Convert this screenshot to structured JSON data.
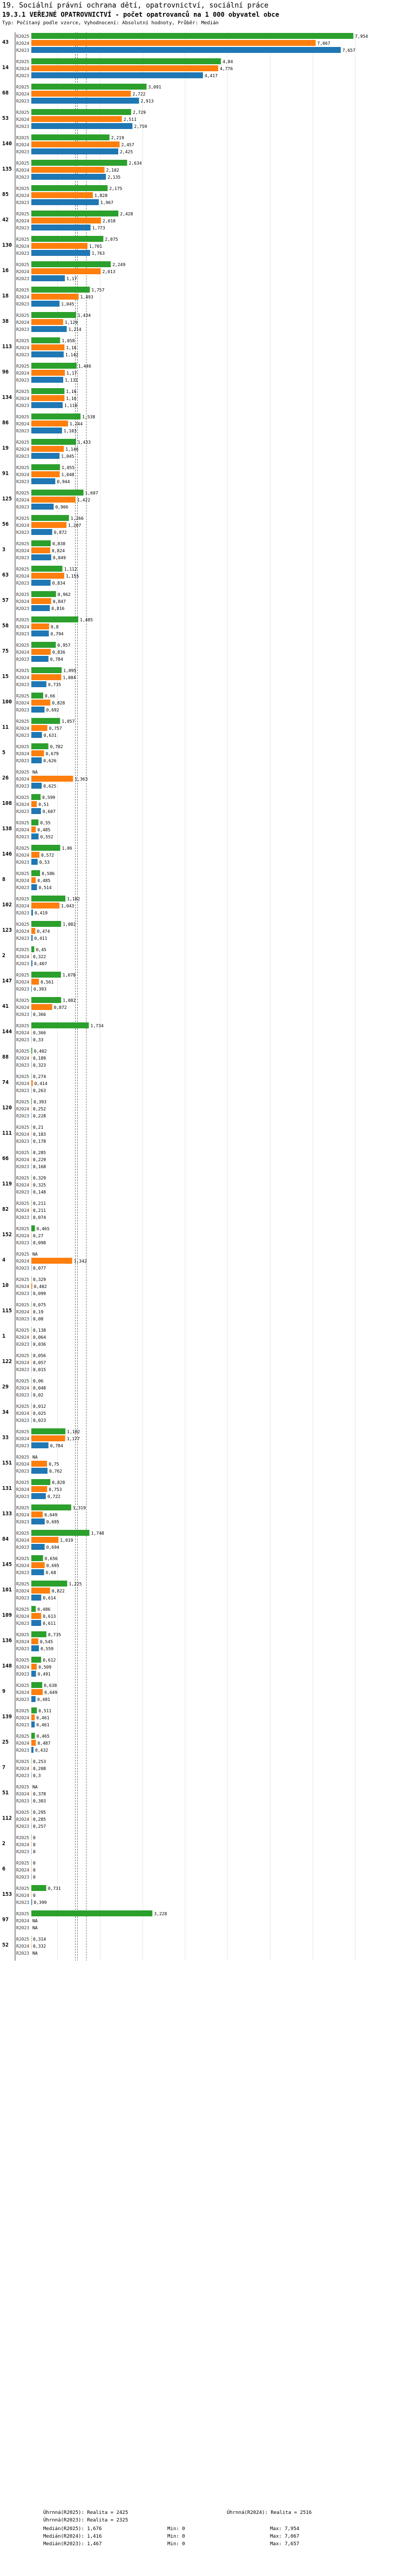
{
  "header": {
    "line1": "19. Sociální právní ochrana dětí, opatrovnictví, sociální práce",
    "line2": "19.3.1 VEŘEJNÉ OPATROVNICTVÍ - počet opatrovanců na 1 000 obyvatel obce",
    "line3": "Typ: Počítaný podle vzorce, Vyhodnocení: Absolutní hodnoty, Průběr: Medián"
  },
  "colors": {
    "y2025": "#2ca02c",
    "y2024": "#ff7f0e",
    "y2023": "#1f77b4"
  },
  "chart_data": {
    "type": "bar",
    "orientation": "horizontal",
    "series_labels": [
      "R2025",
      "R2024",
      "R2023"
    ],
    "xlim": [
      0,
      8
    ],
    "reference_lines": [
      1.676,
      1.416,
      1.467
    ],
    "units": [
      {
        "id": "43",
        "values": [
          7.954,
          7.067,
          7.657
        ]
      },
      {
        "id": "14",
        "values": [
          4.84,
          4.776,
          4.417
        ]
      },
      {
        "id": "68",
        "values": [
          3.091,
          2.722,
          2.913
        ]
      },
      {
        "id": "53",
        "values": [
          2.729,
          2.511,
          2.759
        ]
      },
      {
        "id": "140",
        "values": [
          2.219,
          2.457,
          2.425
        ]
      },
      {
        "id": "135",
        "values": [
          2.634,
          2.102,
          2.135
        ]
      },
      {
        "id": "85",
        "values": [
          2.175,
          1.828,
          1.967
        ]
      },
      {
        "id": "42",
        "values": [
          2.428,
          2.018,
          1.773
        ]
      },
      {
        "id": "130",
        "values": [
          2.075,
          1.701,
          1.763
        ]
      },
      {
        "id": "16",
        "values": [
          2.249,
          2.013,
          1.17
        ]
      },
      {
        "id": "18",
        "values": [
          1.757,
          1.493,
          1.045
        ]
      },
      {
        "id": "38",
        "values": [
          1.434,
          1.129,
          1.214
        ]
      },
      {
        "id": "113",
        "values": [
          1.058,
          1.16,
          1.142
        ]
      },
      {
        "id": "96",
        "values": [
          1.446,
          1.17,
          1.131
        ]
      },
      {
        "id": "134",
        "values": [
          1.16,
          1.16,
          1.118
        ]
      },
      {
        "id": "86",
        "values": [
          1.538,
          1.244,
          1.103
        ]
      },
      {
        "id": "19",
        "values": [
          1.433,
          1.146,
          1.045
        ]
      },
      {
        "id": "91",
        "values": [
          1.055,
          1.048,
          0.944
        ]
      },
      {
        "id": "125",
        "values": [
          1.607,
          1.422,
          0.906
        ]
      },
      {
        "id": "56",
        "values": [
          1.266,
          1.207,
          0.872
        ]
      },
      {
        "id": "3",
        "values": [
          0.838,
          0.824,
          0.849
        ]
      },
      {
        "id": "63",
        "values": [
          1.112,
          1.155,
          0.834
        ]
      },
      {
        "id": "57",
        "values": [
          0.962,
          0.847,
          0.816
        ]
      },
      {
        "id": "58",
        "values": [
          1.485,
          0.8,
          0.794
        ]
      },
      {
        "id": "75",
        "values": [
          0.957,
          0.836,
          0.784
        ]
      },
      {
        "id": "15",
        "values": [
          1.095,
          1.084,
          0.735
        ]
      },
      {
        "id": "100",
        "values": [
          0.66,
          0.828,
          0.692
        ]
      },
      {
        "id": "11",
        "values": [
          1.057,
          0.757,
          0.631
        ]
      },
      {
        "id": "5",
        "values": [
          0.782,
          0.679,
          0.626
        ]
      },
      {
        "id": "26",
        "values": [
          null,
          1.363,
          0.625
        ]
      },
      {
        "id": "108",
        "values": [
          0.599,
          0.51,
          0.607
        ]
      },
      {
        "id": "138",
        "values": [
          0.55,
          0.485,
          0.552
        ]
      },
      {
        "id": "146",
        "values": [
          1.06,
          0.572,
          0.53
        ]
      },
      {
        "id": "8",
        "values": [
          0.586,
          0.485,
          0.514
        ]
      },
      {
        "id": "102",
        "values": [
          1.182,
          1.043,
          0.419
        ]
      },
      {
        "id": "123",
        "values": [
          1.082,
          0.474,
          0.411
        ]
      },
      {
        "id": "2",
        "values": [
          0.45,
          0.322,
          0.407
        ]
      },
      {
        "id": "147",
        "values": [
          1.078,
          0.561,
          0.393
        ]
      },
      {
        "id": "41",
        "values": [
          1.082,
          0.872,
          0.366
        ]
      },
      {
        "id": "144",
        "values": [
          1.734,
          0.366,
          0.33
        ]
      },
      {
        "id": "88",
        "values": [
          0.402,
          0.189,
          0.323
        ]
      },
      {
        "id": "74",
        "values": [
          0.274,
          0.414,
          0.263
        ]
      },
      {
        "id": "120",
        "values": [
          0.393,
          0.252,
          0.228
        ]
      },
      {
        "id": "111",
        "values": [
          0.21,
          0.183,
          0.178
        ]
      },
      {
        "id": "66",
        "values": [
          0.285,
          0.229,
          0.168
        ]
      },
      {
        "id": "119",
        "values": [
          0.329,
          0.325,
          0.148
        ]
      },
      {
        "id": "82",
        "values": [
          0.211,
          0.211,
          0.074
        ]
      },
      {
        "id": "152",
        "values": [
          0.465,
          0.27,
          0.098
        ]
      },
      {
        "id": "4",
        "values": [
          null,
          1.342,
          0.077
        ]
      },
      {
        "id": "10",
        "values": [
          0.329,
          0.402,
          0.099
        ]
      },
      {
        "id": "115",
        "values": [
          0.075,
          0.19,
          0.08
        ]
      },
      {
        "id": "1",
        "values": [
          0.138,
          0.064,
          0.036
        ]
      },
      {
        "id": "122",
        "values": [
          0.056,
          0.057,
          0.015
        ]
      },
      {
        "id": "29",
        "values": [
          0.06,
          0.048,
          0.02
        ]
      },
      {
        "id": "34",
        "values": [
          0.012,
          0.025,
          0.023
        ]
      },
      {
        "id": "33",
        "values": [
          1.182,
          1.177,
          0.784
        ]
      },
      {
        "id": "151",
        "values": [
          null,
          0.75,
          0.762
        ]
      },
      {
        "id": "131",
        "values": [
          0.828,
          0.753,
          0.722
        ]
      },
      {
        "id": "133",
        "values": [
          1.319,
          0.649,
          0.695
        ]
      },
      {
        "id": "84",
        "values": [
          1.748,
          1.019,
          0.694
        ]
      },
      {
        "id": "145",
        "values": [
          0.656,
          0.695,
          0.68
        ]
      },
      {
        "id": "101",
        "values": [
          1.225,
          0.822,
          0.614
        ]
      },
      {
        "id": "109",
        "values": [
          0.486,
          0.613,
          0.611
        ]
      },
      {
        "id": "136",
        "values": [
          0.735,
          0.545,
          0.559
        ]
      },
      {
        "id": "148",
        "values": [
          0.612,
          0.509,
          0.491
        ]
      },
      {
        "id": "9",
        "values": [
          0.638,
          0.649,
          0.481
        ]
      },
      {
        "id": "139",
        "values": [
          0.511,
          0.461,
          0.461
        ]
      },
      {
        "id": "25",
        "values": [
          0.465,
          0.487,
          0.432
        ]
      },
      {
        "id": "7",
        "values": [
          0.253,
          0.208,
          0.3
        ]
      },
      {
        "id": "51",
        "values": [
          null,
          0.378,
          0.303
        ]
      },
      {
        "id": "112",
        "values": [
          0.295,
          0.285,
          0.257
        ]
      },
      {
        "id": "2",
        "values": [
          0,
          0,
          0
        ]
      },
      {
        "id": "6",
        "values": [
          0,
          0,
          0
        ]
      },
      {
        "id": "153",
        "values": [
          0.731,
          0,
          0.399
        ]
      },
      {
        "id": "97",
        "values": [
          3.228,
          null,
          null
        ]
      },
      {
        "id": "52",
        "values": [
          0.314,
          0.332,
          null
        ]
      }
    ]
  },
  "legend": {
    "overall_2025": "Úhrnná(R2025): Realita = 2425",
    "overall_2024": "Úhrnná(R2024): Realita = 2516",
    "overall_2023": "Úhrnná(R2023): Realita = 2325",
    "median_2025": "Medián(R2025): 1,676",
    "median_2024": "Medián(R2024): 1,416",
    "median_2023": "Medián(R2023): 1,467",
    "min_2025": "Min: 0",
    "min_2024": "Min: 0",
    "min_2023": "Min: 0",
    "max_2025": "Max: 7,954",
    "max_2024": "Max: 7,067",
    "max_2023": "Max: 7,657"
  }
}
